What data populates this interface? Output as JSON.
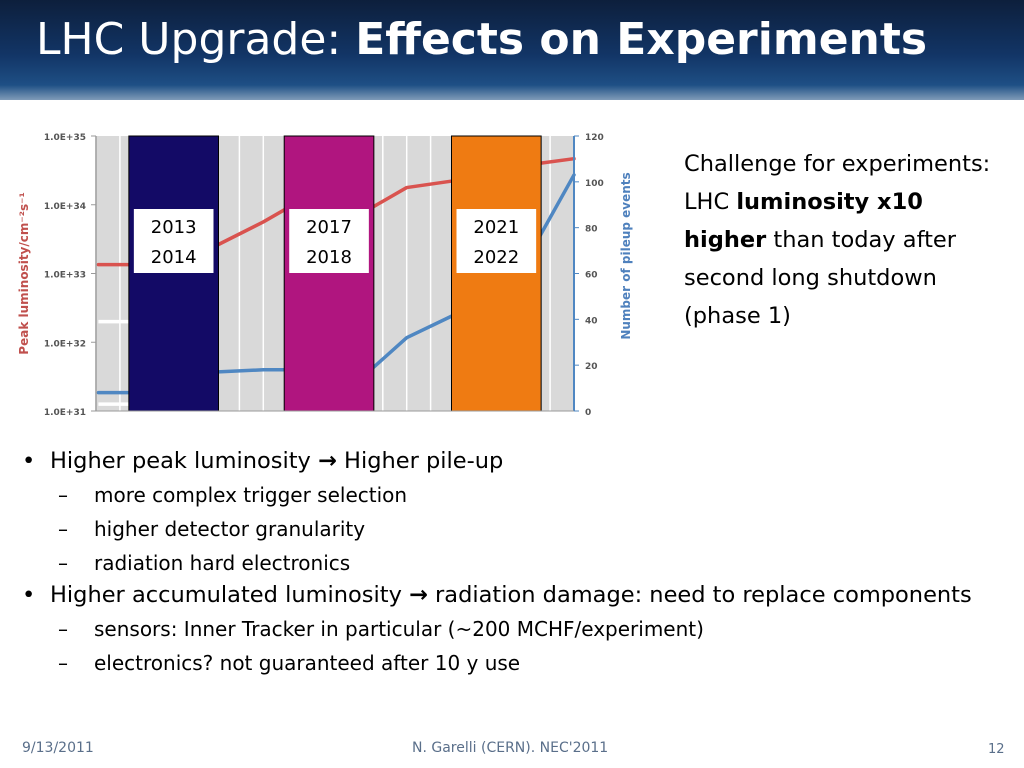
{
  "title": {
    "normal": "LHC Upgrade: ",
    "bold": "Effects on Experiments"
  },
  "chart_data": {
    "type": "line",
    "ylabel_left": "Peak luminosity/cm⁻²s⁻¹",
    "ylabel_right": "Number of pileup events",
    "left_ticks": [
      "1.0E+31",
      "1.0E+32",
      "1.0E+33",
      "1.0E+34",
      "1.0E+35"
    ],
    "right_ticks": [
      "0",
      "20",
      "40",
      "60",
      "80",
      "100",
      "120"
    ],
    "ylim_left_log10": [
      31,
      35
    ],
    "ylim_right": [
      0,
      120
    ],
    "x_columns": 20,
    "shutdown_bands": [
      {
        "label_top": "2013",
        "label_bottom": "2014",
        "color": "#130a66",
        "col_start": 1.5,
        "col_end": 5
      },
      {
        "label_top": "2017",
        "label_bottom": "2018",
        "color": "#b0157f",
        "col_start": 8,
        "col_end": 11.5
      },
      {
        "label_top": "2021",
        "label_bottom": "2022",
        "color": "#ef7b12",
        "col_start": 15,
        "col_end": 18.5
      }
    ],
    "series": [
      {
        "color": "#d9534f",
        "axis": "left",
        "points": [
          [
            0.1,
            33.13
          ],
          [
            1.5,
            33.13
          ],
          [
            5,
            33.4
          ],
          [
            7,
            33.75
          ],
          [
            8,
            33.95
          ],
          [
            11.5,
            33.95
          ],
          [
            13,
            34.25
          ],
          [
            15,
            34.35
          ],
          [
            18.5,
            34.6
          ],
          [
            20,
            34.67
          ]
        ]
      },
      {
        "color": "#4f87c2",
        "axis": "right",
        "points": [
          [
            0.1,
            8
          ],
          [
            1.5,
            8
          ],
          [
            5,
            17
          ],
          [
            7,
            18
          ],
          [
            8,
            18
          ],
          [
            11.5,
            18
          ],
          [
            13,
            32
          ],
          [
            15,
            42
          ],
          [
            18.5,
            75
          ],
          [
            20,
            103
          ]
        ]
      }
    ]
  },
  "challenge": {
    "line1": "Challenge for experiments: LHC ",
    "bold": "luminosity x10 higher",
    "line2": " than today after second long shutdown (phase 1)"
  },
  "bullets": [
    {
      "a": "Higher peak luminosity ",
      "arrow": "→",
      "b": " Higher pile-up",
      "subs": [
        "more complex trigger selection",
        "higher detector granularity",
        "radiation hard electronics"
      ]
    },
    {
      "a": "Higher accumulated luminosity ",
      "arrow": "→",
      "b": " radiation damage: need to replace components",
      "subs": [
        "sensors: Inner Tracker in particular (~200 MCHF/experiment)",
        "electronics? not guaranteed after 10 y use"
      ]
    }
  ],
  "footer": {
    "date": "9/13/2011",
    "author": "N. Garelli (CERN). NEC'2011",
    "page": "12"
  }
}
